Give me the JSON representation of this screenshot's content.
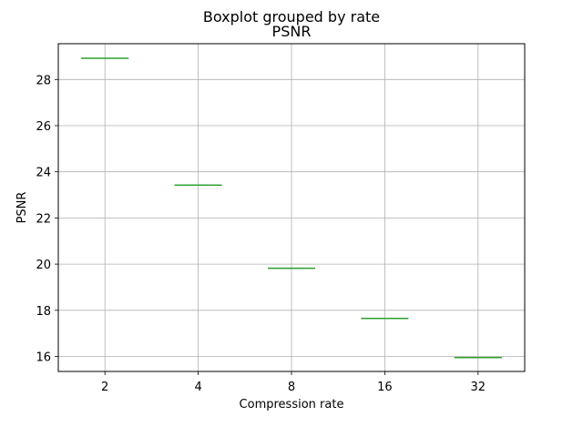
{
  "chart_data": {
    "type": "boxplot",
    "suptitle": "Boxplot grouped by rate",
    "title": "PSNR",
    "xlabel": "Compression rate",
    "ylabel": "PSNR",
    "categories": [
      "2",
      "4",
      "8",
      "16",
      "32"
    ],
    "series": [
      {
        "name": "PSNR",
        "values": [
          28.92,
          23.42,
          19.82,
          17.65,
          15.95
        ]
      }
    ],
    "ylim": [
      15.35,
      29.55
    ],
    "yticks": [
      16,
      18,
      20,
      22,
      24,
      26,
      28
    ],
    "grid": true,
    "colors": {
      "box": "#1f77b4",
      "median": "#2ca02c",
      "grid": "#b0b0b0"
    }
  }
}
